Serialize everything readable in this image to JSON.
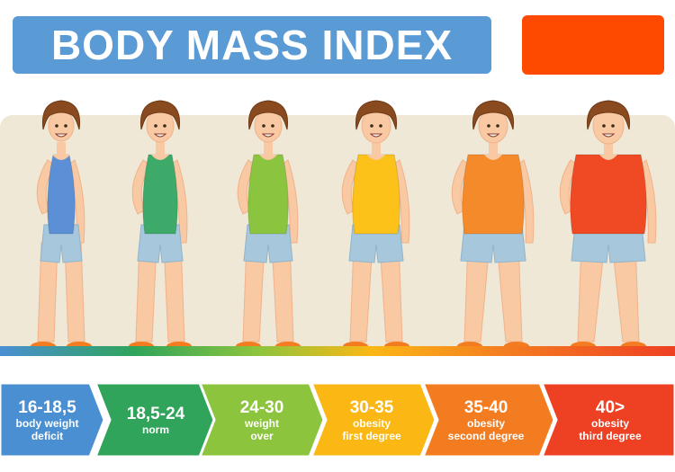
{
  "header": {
    "title": "BODY MASS INDEX",
    "accent_color": "#fe4a01"
  },
  "figures": [
    {
      "shirt_color": "#5b8fd6",
      "build": "thin"
    },
    {
      "shirt_color": "#3daa6a",
      "build": "normal"
    },
    {
      "shirt_color": "#8bc53f",
      "build": "overweight"
    },
    {
      "shirt_color": "#fcc21a",
      "build": "obese-1"
    },
    {
      "shirt_color": "#f58a2a",
      "build": "obese-2"
    },
    {
      "shirt_color": "#ef4a23",
      "build": "obese-3"
    }
  ],
  "categories": [
    {
      "range": "16-18,5",
      "label_line1": "body weight",
      "label_line2": "deficit",
      "color": "#4a8fd2"
    },
    {
      "range": "18,5-24",
      "label_line1": "norm",
      "label_line2": "",
      "color": "#2fa45a"
    },
    {
      "range": "24-30",
      "label_line1": "weight",
      "label_line2": "over",
      "color": "#8cc43e"
    },
    {
      "range": "30-35",
      "label_line1": "obesity",
      "label_line2": "first degree",
      "color": "#fbb714"
    },
    {
      "range": "35-40",
      "label_line1": "obesity",
      "label_line2": "second degree",
      "color": "#f47c20"
    },
    {
      "range": "40>",
      "label_line1": "obesity",
      "label_line2": "third degree",
      "color": "#ee4023"
    }
  ]
}
